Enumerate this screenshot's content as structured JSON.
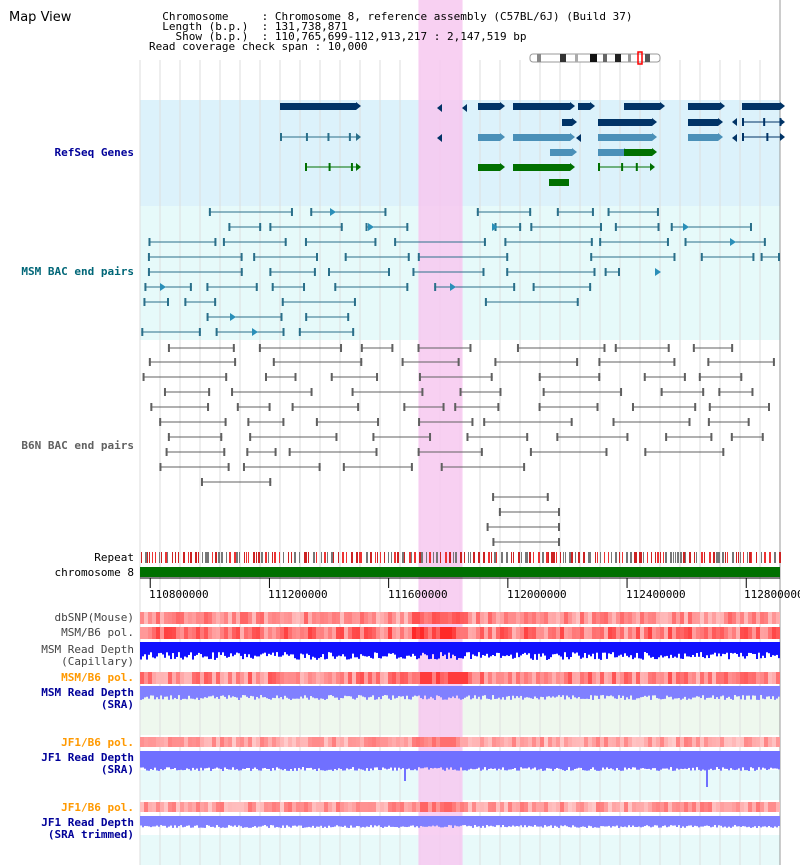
{
  "header": {
    "title": "Map View",
    "info_lines": [
      "  Chromosome     : Chromosome 8, reference assembly (C57BL/6J) (Build 37)",
      "  Length (b.p.)  : 131,738,871",
      "    Show (b.p.)  : 110,765,699-112,913,217 : 2,147,519 bp",
      "Read coverage check span : 10,000"
    ]
  },
  "tracks": {
    "refseq": "RefSeq Genes",
    "msm_bac": "MSM BAC end pairs",
    "b6n_bac": "B6N BAC end pairs",
    "repeat": "Repeat",
    "chromosome": "chromosome 8",
    "dbsnp": "dbSNP(Mouse)",
    "msm_b6_pol": "MSM/B6 pol.",
    "msm_depth_cap_1": "MSM Read Depth",
    "msm_depth_cap_2": "(Capillary)",
    "msm_b6_pol_2": "MSM/B6 pol.",
    "msm_depth_sra_1": "MSM Read Depth",
    "msm_depth_sra_2": "(SRA)",
    "jf1_b6_pol": "JF1/B6 pol.",
    "jf1_depth_sra_1": "JF1 Read Depth",
    "jf1_depth_sra_2": "(SRA)",
    "jf1_b6_pol_2": "JF1/B6 pol.",
    "jf1_depth_trim_1": "JF1 Read Depth",
    "jf1_depth_trim_2": "(SRA trimmed)"
  },
  "axis": {
    "ticks": [
      "110800000",
      "111200000",
      "111600000",
      "112000000",
      "112400000",
      "112800000"
    ],
    "tick_values": [
      110800000,
      111200000,
      111600000,
      112000000,
      112400000,
      112800000
    ],
    "range": [
      110765699,
      112913217
    ]
  },
  "highlight": {
    "start": 111700000,
    "end": 111848000
  },
  "colors": {
    "refseq_bg": "#dcf2fb",
    "bac_bg": "#e6fafa",
    "highlight": "#f7c8f0",
    "chromosome": "#007000",
    "navy": "#003366",
    "steel": "#4a90b8",
    "green": "#007000",
    "bac_line": "#2a6f8a",
    "b6n_line": "#606060",
    "snp_red": "#ff3030",
    "depth_blue": "#1010ff",
    "depth_light": "#8080ff",
    "label_navy": "#000099",
    "label_teal": "#006677",
    "label_orange": "#ff9900",
    "label_gray": "#606060"
  }
}
